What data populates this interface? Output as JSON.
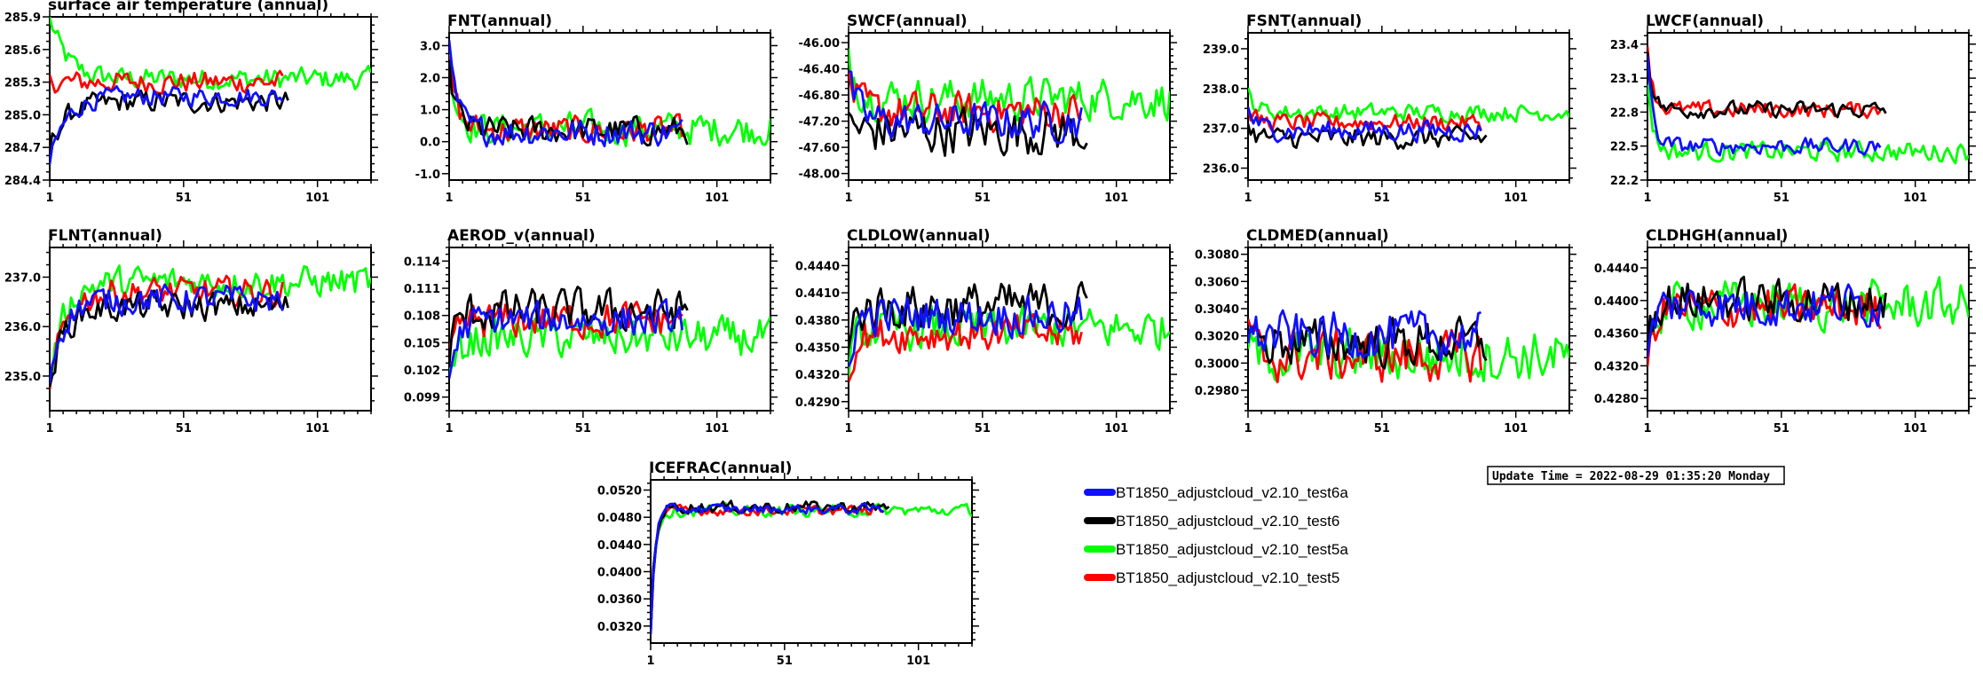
{
  "chart_data": [
    {
      "type": "line",
      "title": "surface air temperature (annual)",
      "xticks": [
        "1",
        "51",
        "101"
      ],
      "xlim": [
        1,
        121
      ],
      "yticks": [
        "284.4",
        "284.7",
        "285.0",
        "285.3",
        "285.6",
        "285.9"
      ],
      "ylim": [
        284.4,
        285.9
      ],
      "grid": false
    },
    {
      "type": "line",
      "title": "FNT(annual)",
      "xticks": [
        "1",
        "51",
        "101"
      ],
      "xlim": [
        1,
        121
      ],
      "yticks": [
        "-1.0",
        "0.0",
        "1.0",
        "2.0",
        "3.0"
      ],
      "ylim": [
        -1.2,
        3.4
      ],
      "grid": false
    },
    {
      "type": "line",
      "title": "SWCF(annual)",
      "xticks": [
        "1",
        "51",
        "101"
      ],
      "xlim": [
        1,
        121
      ],
      "yticks": [
        "-48.00",
        "-47.60",
        "-47.20",
        "-46.80",
        "-46.40",
        "-46.00"
      ],
      "ylim": [
        -48.1,
        -45.85
      ],
      "grid": false
    },
    {
      "type": "line",
      "title": "FSNT(annual)",
      "xticks": [
        "1",
        "51",
        "101"
      ],
      "xlim": [
        1,
        121
      ],
      "yticks": [
        "236.0",
        "237.0",
        "238.0",
        "239.0"
      ],
      "ylim": [
        235.7,
        239.4
      ],
      "grid": false
    },
    {
      "type": "line",
      "title": "LWCF(annual)",
      "xticks": [
        "1",
        "51",
        "101"
      ],
      "xlim": [
        1,
        121
      ],
      "yticks": [
        "22.2",
        "22.5",
        "22.8",
        "23.1",
        "23.4"
      ],
      "ylim": [
        22.2,
        23.5
      ],
      "grid": false
    },
    {
      "type": "line",
      "title": "FLNT(annual)",
      "xticks": [
        "1",
        "51",
        "101"
      ],
      "xlim": [
        1,
        121
      ],
      "yticks": [
        "235.0",
        "236.0",
        "237.0"
      ],
      "ylim": [
        234.3,
        237.6
      ],
      "grid": false
    },
    {
      "type": "line",
      "title": "AEROD_v(annual)",
      "xticks": [
        "1",
        "51",
        "101"
      ],
      "xlim": [
        1,
        121
      ],
      "yticks": [
        "0.099",
        "0.102",
        "0.105",
        "0.108",
        "0.111",
        "0.114"
      ],
      "ylim": [
        0.0975,
        0.1155
      ],
      "grid": false
    },
    {
      "type": "line",
      "title": "CLDLOW(annual)",
      "xticks": [
        "1",
        "51",
        "101"
      ],
      "xlim": [
        1,
        121
      ],
      "yticks": [
        "0.4290",
        "0.4320",
        "0.4350",
        "0.4380",
        "0.4410",
        "0.4440"
      ],
      "ylim": [
        0.428,
        0.446
      ],
      "grid": false
    },
    {
      "type": "line",
      "title": "CLDMED(annual)",
      "xticks": [
        "1",
        "51",
        "101"
      ],
      "xlim": [
        1,
        121
      ],
      "yticks": [
        "0.2980",
        "0.3000",
        "0.3020",
        "0.3040",
        "0.3060",
        "0.3080"
      ],
      "ylim": [
        0.2965,
        0.3085
      ],
      "grid": false
    },
    {
      "type": "line",
      "title": "CLDHGH(annual)",
      "xticks": [
        "1",
        "51",
        "101"
      ],
      "xlim": [
        1,
        121
      ],
      "yticks": [
        "0.4280",
        "0.4320",
        "0.4360",
        "0.4400",
        "0.4440"
      ],
      "ylim": [
        0.4265,
        0.4465
      ],
      "grid": false
    },
    {
      "type": "line",
      "title": "ICEFRAC(annual)",
      "xticks": [
        "1",
        "51",
        "101"
      ],
      "xlim": [
        1,
        121
      ],
      "yticks": [
        "0.0320",
        "0.0360",
        "0.0400",
        "0.0440",
        "0.0480",
        "0.0520"
      ],
      "ylim": [
        0.0295,
        0.0535
      ],
      "grid": false
    }
  ],
  "legend": [
    {
      "name": "BT1850_adjustcloud_v2.10_test6a",
      "color": "#1010ff"
    },
    {
      "name": "BT1850_adjustcloud_v2.10_test6",
      "color": "#000000"
    },
    {
      "name": "BT1850_adjustcloud_v2.10_test5a",
      "color": "#00ff00"
    },
    {
      "name": "BT1850_adjustcloud_v2.10_test5",
      "color": "#ff0000"
    }
  ],
  "update_time": "Update Time = 2022-08-29 01:35:20 Monday"
}
